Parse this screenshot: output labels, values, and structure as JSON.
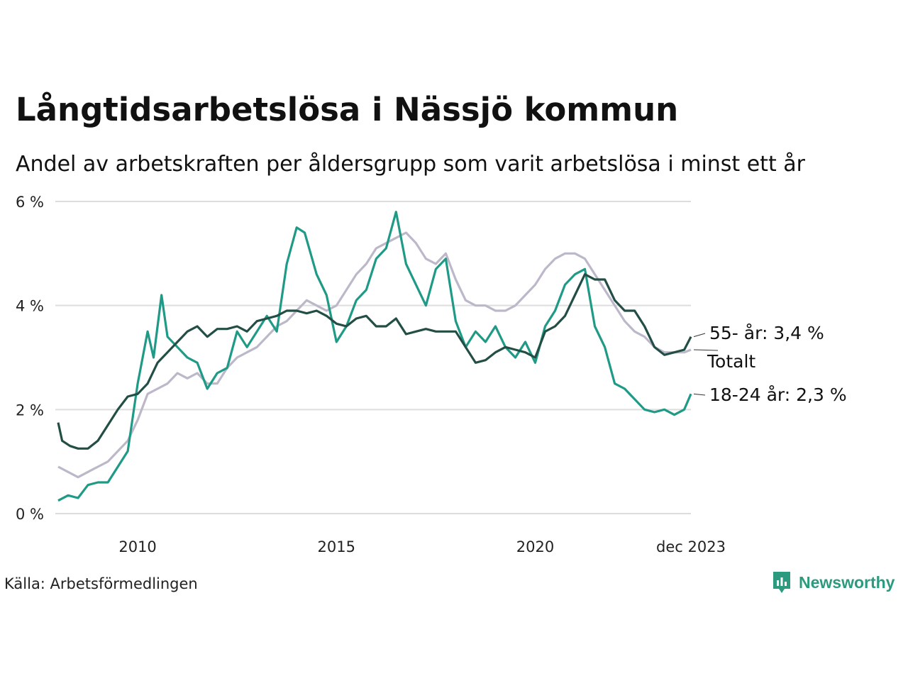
{
  "title": "Långtidsarbetslösa i Nässjö kommun",
  "subtitle": "Andel av arbetskraften per åldersgrupp som varit arbetslösa i minst ett år",
  "source": "Källa: Arbetsförmedlingen",
  "brand": {
    "name": "Newsworthy",
    "logo_icon": "bar-chart-bubble-icon",
    "color": "#2b9a7e"
  },
  "chart_data": {
    "type": "line",
    "x_start": 2008.0,
    "x_end": 2023.917,
    "ylim": [
      0,
      6
    ],
    "y_ticks": [
      {
        "value": 0,
        "label": "0 %"
      },
      {
        "value": 2,
        "label": "2 %"
      },
      {
        "value": 4,
        "label": "4 %"
      },
      {
        "value": 6,
        "label": "6 %"
      }
    ],
    "x_ticks": [
      {
        "value": 2010,
        "label": "2010"
      },
      {
        "value": 2015,
        "label": "2015"
      },
      {
        "value": 2020,
        "label": "2020"
      },
      {
        "value": 2023.917,
        "label": "dec 2023"
      }
    ],
    "series": [
      {
        "name": "Totalt",
        "color": "#bdb8c9",
        "end_label": "Totalt",
        "points": [
          [
            2008.0,
            0.9
          ],
          [
            2008.25,
            0.8
          ],
          [
            2008.5,
            0.7
          ],
          [
            2008.75,
            0.8
          ],
          [
            2009.0,
            0.9
          ],
          [
            2009.25,
            1.0
          ],
          [
            2009.5,
            1.2
          ],
          [
            2009.75,
            1.4
          ],
          [
            2010.0,
            1.8
          ],
          [
            2010.25,
            2.3
          ],
          [
            2010.5,
            2.4
          ],
          [
            2010.75,
            2.5
          ],
          [
            2011.0,
            2.7
          ],
          [
            2011.25,
            2.6
          ],
          [
            2011.5,
            2.7
          ],
          [
            2011.75,
            2.5
          ],
          [
            2012.0,
            2.5
          ],
          [
            2012.25,
            2.8
          ],
          [
            2012.5,
            3.0
          ],
          [
            2012.75,
            3.1
          ],
          [
            2013.0,
            3.2
          ],
          [
            2013.25,
            3.4
          ],
          [
            2013.5,
            3.6
          ],
          [
            2013.75,
            3.7
          ],
          [
            2014.0,
            3.9
          ],
          [
            2014.25,
            4.1
          ],
          [
            2014.5,
            4.0
          ],
          [
            2014.75,
            3.9
          ],
          [
            2015.0,
            4.0
          ],
          [
            2015.25,
            4.3
          ],
          [
            2015.5,
            4.6
          ],
          [
            2015.75,
            4.8
          ],
          [
            2016.0,
            5.1
          ],
          [
            2016.25,
            5.2
          ],
          [
            2016.5,
            5.3
          ],
          [
            2016.75,
            5.4
          ],
          [
            2017.0,
            5.2
          ],
          [
            2017.25,
            4.9
          ],
          [
            2017.5,
            4.8
          ],
          [
            2017.75,
            5.0
          ],
          [
            2018.0,
            4.5
          ],
          [
            2018.25,
            4.1
          ],
          [
            2018.5,
            4.0
          ],
          [
            2018.75,
            4.0
          ],
          [
            2019.0,
            3.9
          ],
          [
            2019.25,
            3.9
          ],
          [
            2019.5,
            4.0
          ],
          [
            2019.75,
            4.2
          ],
          [
            2020.0,
            4.4
          ],
          [
            2020.25,
            4.7
          ],
          [
            2020.5,
            4.9
          ],
          [
            2020.75,
            5.0
          ],
          [
            2021.0,
            5.0
          ],
          [
            2021.25,
            4.9
          ],
          [
            2021.5,
            4.6
          ],
          [
            2021.75,
            4.3
          ],
          [
            2022.0,
            4.0
          ],
          [
            2022.25,
            3.7
          ],
          [
            2022.5,
            3.5
          ],
          [
            2022.75,
            3.4
          ],
          [
            2023.0,
            3.2
          ],
          [
            2023.25,
            3.1
          ],
          [
            2023.5,
            3.1
          ],
          [
            2023.75,
            3.1
          ],
          [
            2023.917,
            3.15
          ]
        ]
      },
      {
        "name": "18-24 år",
        "color": "#1f9a86",
        "end_label": "18-24 år: 2,3 %",
        "points": [
          [
            2008.0,
            0.25
          ],
          [
            2008.25,
            0.35
          ],
          [
            2008.5,
            0.3
          ],
          [
            2008.75,
            0.55
          ],
          [
            2009.0,
            0.6
          ],
          [
            2009.25,
            0.6
          ],
          [
            2009.5,
            0.9
          ],
          [
            2009.75,
            1.2
          ],
          [
            2010.0,
            2.5
          ],
          [
            2010.25,
            3.5
          ],
          [
            2010.4,
            3.0
          ],
          [
            2010.6,
            4.2
          ],
          [
            2010.75,
            3.4
          ],
          [
            2011.0,
            3.2
          ],
          [
            2011.25,
            3.0
          ],
          [
            2011.5,
            2.9
          ],
          [
            2011.75,
            2.4
          ],
          [
            2012.0,
            2.7
          ],
          [
            2012.25,
            2.8
          ],
          [
            2012.5,
            3.5
          ],
          [
            2012.75,
            3.2
          ],
          [
            2013.0,
            3.5
          ],
          [
            2013.25,
            3.8
          ],
          [
            2013.5,
            3.5
          ],
          [
            2013.75,
            4.8
          ],
          [
            2014.0,
            5.5
          ],
          [
            2014.2,
            5.4
          ],
          [
            2014.35,
            5.0
          ],
          [
            2014.5,
            4.6
          ],
          [
            2014.75,
            4.2
          ],
          [
            2015.0,
            3.3
          ],
          [
            2015.25,
            3.6
          ],
          [
            2015.5,
            4.1
          ],
          [
            2015.75,
            4.3
          ],
          [
            2016.0,
            4.9
          ],
          [
            2016.25,
            5.1
          ],
          [
            2016.5,
            5.8
          ],
          [
            2016.75,
            4.8
          ],
          [
            2017.0,
            4.4
          ],
          [
            2017.25,
            4.0
          ],
          [
            2017.5,
            4.7
          ],
          [
            2017.75,
            4.9
          ],
          [
            2018.0,
            3.7
          ],
          [
            2018.25,
            3.2
          ],
          [
            2018.5,
            3.5
          ],
          [
            2018.75,
            3.3
          ],
          [
            2019.0,
            3.6
          ],
          [
            2019.25,
            3.2
          ],
          [
            2019.5,
            3.0
          ],
          [
            2019.75,
            3.3
          ],
          [
            2020.0,
            2.9
          ],
          [
            2020.25,
            3.6
          ],
          [
            2020.5,
            3.9
          ],
          [
            2020.75,
            4.4
          ],
          [
            2021.0,
            4.6
          ],
          [
            2021.25,
            4.7
          ],
          [
            2021.5,
            3.6
          ],
          [
            2021.75,
            3.2
          ],
          [
            2022.0,
            2.5
          ],
          [
            2022.25,
            2.4
          ],
          [
            2022.5,
            2.2
          ],
          [
            2022.75,
            2.0
          ],
          [
            2023.0,
            1.95
          ],
          [
            2023.25,
            2.0
          ],
          [
            2023.5,
            1.9
          ],
          [
            2023.75,
            2.0
          ],
          [
            2023.917,
            2.3
          ]
        ]
      },
      {
        "name": "55- år",
        "color": "#234e45",
        "end_label": "55- år: 3,4 %",
        "points": [
          [
            2008.0,
            1.75
          ],
          [
            2008.1,
            1.4
          ],
          [
            2008.3,
            1.3
          ],
          [
            2008.5,
            1.25
          ],
          [
            2008.75,
            1.25
          ],
          [
            2009.0,
            1.4
          ],
          [
            2009.25,
            1.7
          ],
          [
            2009.5,
            2.0
          ],
          [
            2009.75,
            2.25
          ],
          [
            2010.0,
            2.3
          ],
          [
            2010.25,
            2.5
          ],
          [
            2010.5,
            2.9
          ],
          [
            2010.75,
            3.1
          ],
          [
            2011.0,
            3.3
          ],
          [
            2011.25,
            3.5
          ],
          [
            2011.5,
            3.6
          ],
          [
            2011.75,
            3.4
          ],
          [
            2012.0,
            3.55
          ],
          [
            2012.25,
            3.55
          ],
          [
            2012.5,
            3.6
          ],
          [
            2012.75,
            3.5
          ],
          [
            2013.0,
            3.7
          ],
          [
            2013.25,
            3.75
          ],
          [
            2013.5,
            3.8
          ],
          [
            2013.75,
            3.9
          ],
          [
            2014.0,
            3.9
          ],
          [
            2014.25,
            3.85
          ],
          [
            2014.5,
            3.9
          ],
          [
            2014.75,
            3.8
          ],
          [
            2015.0,
            3.65
          ],
          [
            2015.25,
            3.6
          ],
          [
            2015.5,
            3.75
          ],
          [
            2015.75,
            3.8
          ],
          [
            2016.0,
            3.6
          ],
          [
            2016.25,
            3.6
          ],
          [
            2016.5,
            3.75
          ],
          [
            2016.75,
            3.45
          ],
          [
            2017.0,
            3.5
          ],
          [
            2017.25,
            3.55
          ],
          [
            2017.5,
            3.5
          ],
          [
            2017.75,
            3.5
          ],
          [
            2018.0,
            3.5
          ],
          [
            2018.25,
            3.2
          ],
          [
            2018.5,
            2.9
          ],
          [
            2018.75,
            2.95
          ],
          [
            2019.0,
            3.1
          ],
          [
            2019.25,
            3.2
          ],
          [
            2019.5,
            3.15
          ],
          [
            2019.75,
            3.1
          ],
          [
            2020.0,
            3.0
          ],
          [
            2020.25,
            3.5
          ],
          [
            2020.5,
            3.6
          ],
          [
            2020.75,
            3.8
          ],
          [
            2021.0,
            4.2
          ],
          [
            2021.25,
            4.6
          ],
          [
            2021.5,
            4.5
          ],
          [
            2021.75,
            4.5
          ],
          [
            2022.0,
            4.1
          ],
          [
            2022.25,
            3.9
          ],
          [
            2022.5,
            3.9
          ],
          [
            2022.75,
            3.6
          ],
          [
            2023.0,
            3.2
          ],
          [
            2023.25,
            3.05
          ],
          [
            2023.5,
            3.1
          ],
          [
            2023.75,
            3.15
          ],
          [
            2023.917,
            3.4
          ]
        ]
      }
    ]
  }
}
